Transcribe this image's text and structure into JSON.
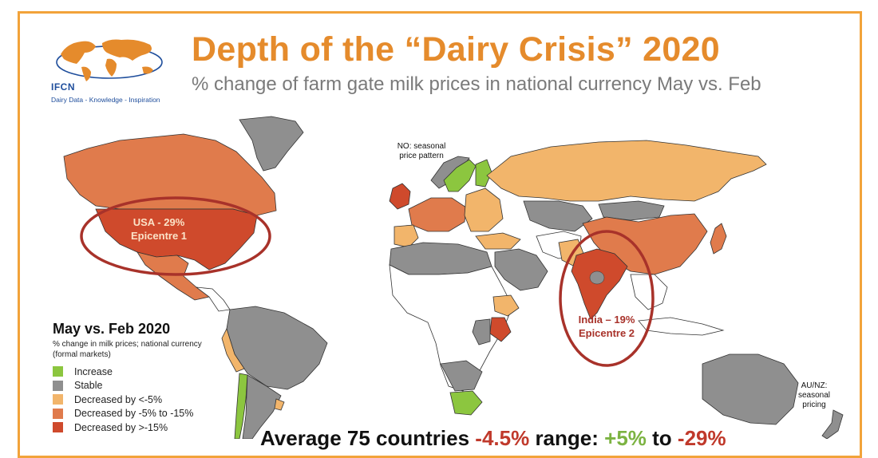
{
  "header": {
    "title": "Depth of the “Dairy Crisis” 2020",
    "subtitle": "% change of farm gate milk prices in national currency May vs. Feb"
  },
  "logo": {
    "name": "IFCN",
    "tagline": "Dairy Data - Knowledge - Inspiration"
  },
  "annotations": {
    "norway_note": [
      "NO: seasonal",
      "price pattern"
    ],
    "usa_callout": [
      "USA - 29%",
      "Epicentre 1"
    ],
    "india_callout": [
      "India – 19%",
      "Epicentre 2"
    ],
    "oceania_note": [
      "AU/NZ:",
      "seasonal",
      "pricing"
    ]
  },
  "legend": {
    "title": "May vs. Feb 2020",
    "subtitle": "% change in milk prices; national currency (formal markets)",
    "items": [
      {
        "label": "Increase",
        "color": "#8cc63f"
      },
      {
        "label": "Stable",
        "color": "#8f8f8f"
      },
      {
        "label": "Decreased by <-5%",
        "color": "#f2b56b"
      },
      {
        "label": "Decreased by -5% to -15%",
        "color": "#e07b4c"
      },
      {
        "label": "Decreased by >-15%",
        "color": "#cf4a2c"
      }
    ]
  },
  "footer": {
    "prefix": "Average 75 countries",
    "avg": "-4.5%",
    "range_word": "range:",
    "range_low": "+5%",
    "to": "to",
    "range_high": "-29%"
  },
  "colors": {
    "accent": "#e58b2c",
    "callout_ring": "#a8322a",
    "frame": "#f2a33a"
  }
}
